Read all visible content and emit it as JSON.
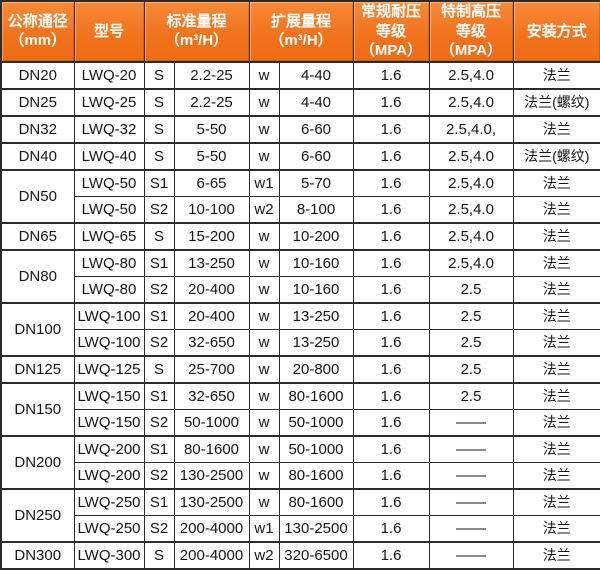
{
  "colors": {
    "header_bg": "#f1731d",
    "header_text": "#ffffff",
    "border": "#2b2b2b",
    "body_text": "#151515"
  },
  "header": {
    "cells": [
      {
        "line1": "公称通径",
        "line2": "（mm）"
      },
      {
        "line1": "型号"
      },
      {
        "line1": "标准量程",
        "line2": "（m³/H）"
      },
      {
        "line1": "扩展量程",
        "line2": "（m³/H）"
      },
      {
        "line1": "常规耐压",
        "line2": "等级（MPA）"
      },
      {
        "line1": "特制高压",
        "line2": "等级（MPA）"
      },
      {
        "line1": "安装方式"
      }
    ]
  },
  "rows": [
    {
      "dn": "DN20",
      "model": "LWQ-20",
      "s": "S",
      "std": "2.2-25",
      "w": "w",
      "ext": "4-40",
      "normal": "1.6",
      "special": "2.5,4.0",
      "install": "法兰"
    },
    {
      "dn": "DN25",
      "model": "LWQ-25",
      "s": "S",
      "std": "2.2-25",
      "w": "w",
      "ext": "4-40",
      "normal": "1.6",
      "special": "2.5,4.0",
      "install": "法兰(螺纹)"
    },
    {
      "dn": "DN32",
      "model": "LWQ-32",
      "s": "S",
      "std": "5-50",
      "w": "w",
      "ext": "6-60",
      "normal": "1.6",
      "special": "2.5,4.0,",
      "install": "法兰"
    },
    {
      "dn": "DN40",
      "model": "LWQ-40",
      "s": "S",
      "std": "5-50",
      "w": "w",
      "ext": "6-60",
      "normal": "1.6",
      "special": "2.5,4.0",
      "install": "法兰(螺纹)"
    },
    {
      "dn": "DN50",
      "model": "LWQ-50",
      "s": "S1",
      "std": "6-65",
      "w": "w1",
      "ext": "5-70",
      "normal": "1.6",
      "special": "2.5,4.0",
      "install": "法兰"
    },
    {
      "model": "LWQ-50",
      "s": "S2",
      "std": "10-100",
      "w": "w2",
      "ext": "8-100",
      "normal": "1.6",
      "special": "2.5,4.0",
      "install": "法兰"
    },
    {
      "dn": "DN65",
      "model": "LWQ-65",
      "s": "S",
      "std": "15-200",
      "w": "w",
      "ext": "10-200",
      "normal": "1.6",
      "special": "2.5,4.0",
      "install": "法兰"
    },
    {
      "dn": "DN80",
      "model": "LWQ-80",
      "s": "S1",
      "std": "13-250",
      "w": "w",
      "ext": "10-160",
      "normal": "1.6",
      "special": "2.5,4.0",
      "install": "法兰"
    },
    {
      "model": "LWQ-80",
      "s": "S2",
      "std": "20-400",
      "w": "w",
      "ext": "10-160",
      "normal": "1.6",
      "special": "2.5",
      "install": "法兰"
    },
    {
      "dn": "DN100",
      "model": "LWQ-100",
      "s": "S1",
      "std": "20-400",
      "w": "w",
      "ext": "13-250",
      "normal": "1.6",
      "special": "2.5",
      "install": "法兰"
    },
    {
      "model": "LWQ-100",
      "s": "S2",
      "std": "32-650",
      "w": "w",
      "ext": "13-250",
      "normal": "1.6",
      "special": "2.5",
      "install": "法兰"
    },
    {
      "dn": "DN125",
      "model": "LWQ-125",
      "s": "S",
      "std": "25-700",
      "w": "w",
      "ext": "20-800",
      "normal": "1.6",
      "special": "2.5",
      "install": "法兰"
    },
    {
      "dn": "DN150",
      "model": "LWQ-150",
      "s": "S1",
      "std": "32-650",
      "w": "w",
      "ext": "80-1600",
      "normal": "1.6",
      "special": "2.5",
      "install": "法兰"
    },
    {
      "model": "LWQ-150",
      "s": "S2",
      "std": "50-1000",
      "w": "w",
      "ext": "50-1000",
      "normal": "1.6",
      "special": "——",
      "install": "法兰"
    },
    {
      "dn": "DN200",
      "model": "LWQ-200",
      "s": "S1",
      "std": "80-1600",
      "w": "w",
      "ext": "50-1000",
      "normal": "1.6",
      "special": "——",
      "install": "法兰"
    },
    {
      "model": "LWQ-200",
      "s": "S2",
      "std": "130-2500",
      "w": "w",
      "ext": "80-1600",
      "normal": "1.6",
      "special": "——",
      "install": "法兰"
    },
    {
      "dn": "DN250",
      "model": "LWQ-250",
      "s": "S1",
      "std": "130-2500",
      "w": "w",
      "ext": "80-1600",
      "normal": "1.6",
      "special": "——",
      "install": "法兰"
    },
    {
      "model": "LWQ-250",
      "s": "S2",
      "std": "200-4000",
      "w": "w1",
      "ext": "130-2500",
      "normal": "1.6",
      "special": "——",
      "install": "法兰"
    },
    {
      "dn": "DN300",
      "model": "LWQ-300",
      "s": "S",
      "std": "200-4000",
      "w": "w2",
      "ext": "320-6500",
      "normal": "1.6",
      "special": "——",
      "install": "法兰"
    }
  ]
}
